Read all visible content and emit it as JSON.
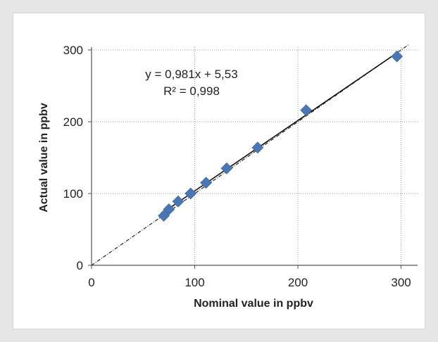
{
  "chart_data": {
    "type": "scatter",
    "title": "",
    "xlabel": "Nominal value in ppbv",
    "ylabel": "Actual value in ppbv",
    "xlim": [
      0,
      300
    ],
    "ylim": [
      0,
      300
    ],
    "x_ticks": [
      "0",
      "100",
      "200",
      "300"
    ],
    "y_ticks": [
      "0",
      "100",
      "200",
      "300"
    ],
    "grid": true,
    "marker_color": "#4a77b4",
    "series": [
      {
        "x": [
          70,
          75,
          84,
          96,
          111,
          131,
          161,
          208,
          296
        ],
        "y": [
          69,
          78,
          89,
          100,
          115,
          135,
          164,
          216,
          291
        ]
      }
    ],
    "trendline": {
      "slope": 0.981,
      "intercept": 5.53,
      "equation": "y = 0,981x + 5,53",
      "r2": "R² = 0,998"
    },
    "reference_line": {
      "slope": 1,
      "intercept": 0
    }
  }
}
